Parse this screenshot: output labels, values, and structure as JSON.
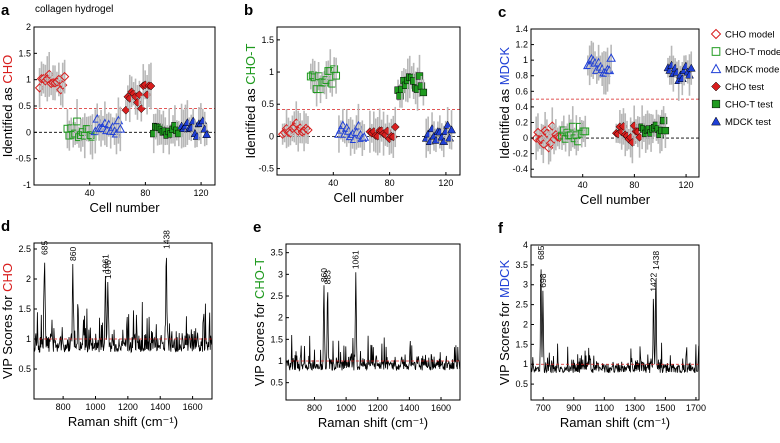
{
  "figure_title": "collagen hydrogel",
  "colors": {
    "CHO": "#d81e1e",
    "CHO-T": "#1f9a1f",
    "MDCK": "#1f3fd6",
    "errorbar": "#b8b8b8",
    "threshold": "#d81e1e",
    "zero": "#000000",
    "vip_line": "#000000"
  },
  "legend": [
    {
      "label": "CHO model",
      "series": "CHO",
      "marker": "diamond",
      "filled": false
    },
    {
      "label": "CHO-T model",
      "series": "CHO-T",
      "marker": "square",
      "filled": false
    },
    {
      "label": "MDCK model",
      "series": "MDCK",
      "marker": "triangle",
      "filled": false
    },
    {
      "label": "CHO test",
      "series": "CHO",
      "marker": "diamond",
      "filled": true
    },
    {
      "label": "CHO-T test",
      "series": "CHO-T",
      "marker": "square",
      "filled": true
    },
    {
      "label": "MDCK test",
      "series": "MDCK",
      "marker": "triangle",
      "filled": true
    }
  ],
  "chart_data": [
    {
      "letter": "a",
      "type": "scatter",
      "ylabel_prefix": "Identified as ",
      "ylabel_class": "CHO",
      "xlabel": "Cell number",
      "xlim": [
        0,
        130
      ],
      "ylim": [
        -1,
        2
      ],
      "xticks": [
        40,
        80,
        120
      ],
      "xtick_labels": [
        "40",
        "80",
        "120"
      ],
      "yticks": [
        -1,
        -0.5,
        0,
        0.5,
        1,
        1.5,
        2
      ],
      "ytick_labels": [
        "-1",
        "-0.5",
        "0",
        "0.5",
        "1",
        "1.5",
        "2"
      ],
      "threshold": 0.45,
      "target": "CHO",
      "series_means": {
        "CHO": [
          0.95,
          0.72
        ],
        "CHO-T": [
          0.0,
          0.02
        ],
        "MDCK": [
          0.05,
          0.08
        ]
      }
    },
    {
      "letter": "b",
      "type": "scatter",
      "ylabel_prefix": "Identified as ",
      "ylabel_class": "CHO-T",
      "xlabel": "Cell number",
      "xlim": [
        0,
        130
      ],
      "ylim": [
        -0.6,
        1.7
      ],
      "xticks": [
        40,
        80,
        120
      ],
      "xtick_labels": [
        "40",
        "80",
        "120"
      ],
      "yticks": [
        -0.5,
        0,
        0.5,
        1,
        1.5
      ],
      "ytick_labels": [
        "-0.5",
        "0",
        "0.5",
        "1",
        "1.5"
      ],
      "threshold": 0.42,
      "target": "CHO-T",
      "series_means": {
        "CHO": [
          0.08,
          0.05
        ],
        "CHO-T": [
          0.9,
          0.8
        ],
        "MDCK": [
          0.05,
          0.05
        ]
      }
    },
    {
      "letter": "c",
      "type": "scatter",
      "ylabel_prefix": "Identified as ",
      "ylabel_class": "MDCK",
      "xlabel": "Cell number",
      "xlim": [
        0,
        130
      ],
      "ylim": [
        -0.5,
        1.4
      ],
      "xticks": [
        40,
        80,
        120
      ],
      "xtick_labels": [
        "40",
        "80",
        "120"
      ],
      "yticks": [
        -0.4,
        -0.2,
        0,
        0.2,
        0.4,
        0.6,
        0.8,
        1,
        1.2,
        1.4
      ],
      "ytick_labels": [
        "-0.4",
        "-0.2",
        "0",
        "0.2",
        "0.4",
        "0.6",
        "0.8",
        "1",
        "1.2",
        "1.4"
      ],
      "threshold": 0.5,
      "target": "MDCK",
      "series_means": {
        "CHO": [
          0.02,
          0.05
        ],
        "CHO-T": [
          0.05,
          0.12
        ],
        "MDCK": [
          0.92,
          0.82
        ]
      }
    },
    {
      "letter": "d",
      "type": "line",
      "ylabel_prefix": "VIP Scores for ",
      "ylabel_class": "CHO",
      "xlabel": "Raman shift (cm⁻¹)",
      "xlim": [
        620,
        1720
      ],
      "ylim": [
        0,
        2.6
      ],
      "xticks": [
        800,
        1000,
        1200,
        1400,
        1600
      ],
      "xtick_labels": [
        "800",
        "1000",
        "1200",
        "1400",
        "1600"
      ],
      "yticks": [
        0.5,
        1,
        1.5,
        2,
        2.5
      ],
      "ytick_labels": [
        "0.5",
        "1",
        "1.5",
        "2",
        "2.5"
      ],
      "threshold": 1.0,
      "peaks": [
        {
          "x": 685,
          "y": 2.35,
          "label": "685"
        },
        {
          "x": 860,
          "y": 2.25,
          "label": "860"
        },
        {
          "x": 1061,
          "y": 2.05,
          "label": "1061"
        },
        {
          "x": 1076,
          "y": 1.95,
          "label": "1076"
        },
        {
          "x": 1438,
          "y": 2.45,
          "label": "1438"
        }
      ]
    },
    {
      "letter": "e",
      "type": "line",
      "ylabel_prefix": "VIP Scores for ",
      "ylabel_class": "CHO-T",
      "xlabel": "Raman shift (cm⁻¹)",
      "xlim": [
        620,
        1720
      ],
      "ylim": [
        0.1,
        3.7
      ],
      "xticks": [
        800,
        1000,
        1200,
        1400,
        1600
      ],
      "xtick_labels": [
        "800",
        "1000",
        "1200",
        "1400",
        "1600"
      ],
      "yticks": [
        0.5,
        1,
        1.5,
        2,
        2.5,
        3,
        3.5
      ],
      "ytick_labels": [
        "0.5",
        "1",
        "1.5",
        "2",
        "2.5",
        "3",
        "3.5"
      ],
      "threshold": 1.0,
      "peaks": [
        {
          "x": 860,
          "y": 2.75,
          "label": "860"
        },
        {
          "x": 883,
          "y": 2.7,
          "label": "883"
        },
        {
          "x": 1061,
          "y": 3.05,
          "label": "1061"
        }
      ]
    },
    {
      "letter": "f",
      "type": "line",
      "ylabel_prefix": "VIP Scores for ",
      "ylabel_class": "MDCK",
      "xlabel": "Raman shift (cm⁻¹)",
      "xlim": [
        620,
        1720
      ],
      "ylim": [
        0.1,
        4.0
      ],
      "xticks": [
        700,
        900,
        1100,
        1300,
        1500,
        1700
      ],
      "xtick_labels": [
        "700",
        "900",
        "1100",
        "1300",
        "1500",
        "1700"
      ],
      "yticks": [
        0.5,
        1,
        1.5,
        2,
        2.5,
        3,
        3.5,
        4
      ],
      "ytick_labels": [
        "0.5",
        "1",
        "1.5",
        "2",
        "2.5",
        "3",
        "3.5",
        "4"
      ],
      "threshold": 1.0,
      "peaks": [
        {
          "x": 685,
          "y": 3.55,
          "label": "685"
        },
        {
          "x": 698,
          "y": 2.85,
          "label": "698"
        },
        {
          "x": 1422,
          "y": 2.75,
          "label": "1422"
        },
        {
          "x": 1438,
          "y": 3.3,
          "label": "1438"
        }
      ]
    }
  ]
}
